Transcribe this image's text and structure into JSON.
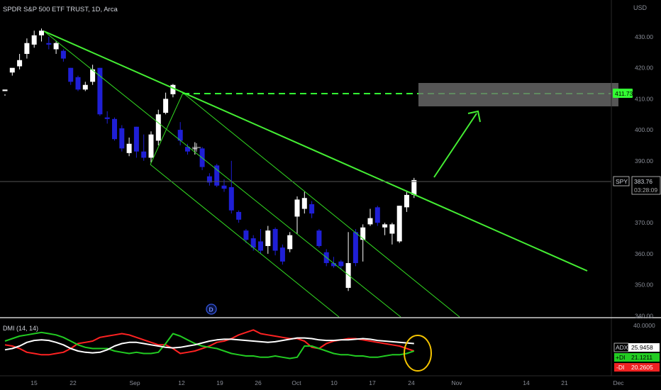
{
  "header": {
    "title": "SPDR S&P 500 ETF TRUST, 1D, Arca"
  },
  "price_axis": {
    "currency": "USD",
    "ticks": [
      "430.00",
      "420.00",
      "410.00",
      "400.00",
      "390.00",
      "380.00",
      "370.00",
      "360.00",
      "350.00",
      "340.00"
    ],
    "tick_values": [
      430,
      420,
      410,
      400,
      390,
      380,
      370,
      360,
      350,
      340
    ]
  },
  "date_axis": {
    "labels": [
      "15",
      "22",
      "Sep",
      "12",
      "19",
      "26",
      "Oct",
      "10",
      "17",
      "24",
      "Nov",
      "14",
      "21",
      "Dec"
    ]
  },
  "price_tags": {
    "target": {
      "value": "411.73",
      "color": "#33ff33"
    },
    "last": {
      "symbol": "SPY",
      "value": "383.76",
      "countdown": "03:28:09"
    }
  },
  "dividend_marker": {
    "label": "D"
  },
  "indicator": {
    "name": "DMI (14, 14)",
    "scale_top": "40.0000",
    "adx": {
      "label": "ADX",
      "value": "25.9458",
      "color": "#ffffff"
    },
    "plus_di": {
      "label": "+DI",
      "value": "21.1211",
      "color": "#22cc22"
    },
    "minus_di": {
      "label": "-DI",
      "value": "20.2605",
      "color": "#ff2222"
    }
  },
  "chart_data": {
    "type": "candlestick",
    "title": "SPDR S&P 500 ETF TRUST, 1D, Arca",
    "ylim": [
      340,
      436
    ],
    "colors": {
      "up": "#ffffff",
      "down": "#1f1fd6",
      "trend": "#44ee33",
      "channel": "#33dd22"
    },
    "candles": [
      [
        412.5,
        413.0,
        411.5,
        411.0
      ],
      [
        418.5,
        420.0,
        419.5,
        417.5
      ],
      [
        420.5,
        422.5,
        424.5,
        419.5
      ],
      [
        424.5,
        428.0,
        429.5,
        423.0
      ],
      [
        427.5,
        430.5,
        432.0,
        426.5
      ],
      [
        430.5,
        432.0,
        432.7,
        428.5
      ],
      [
        428.0,
        427.5,
        430.0,
        426.0
      ],
      [
        426.0,
        428.0,
        428.5,
        424.5
      ],
      [
        425.5,
        423.0,
        426.0,
        422.0
      ],
      [
        420.0,
        415.5,
        420.0,
        414.5
      ],
      [
        417.0,
        413.0,
        417.5,
        412.5
      ],
      [
        413.0,
        414.5,
        415.5,
        412.5
      ],
      [
        415.5,
        419.5,
        421.0,
        414.5
      ],
      [
        420.0,
        405.0,
        420.0,
        404.5
      ],
      [
        404.0,
        403.5,
        406.0,
        402.0
      ],
      [
        403.5,
        397.0,
        404.0,
        396.5
      ],
      [
        400.5,
        394.0,
        401.5,
        393.0
      ],
      [
        392.5,
        395.5,
        397.5,
        391.5
      ],
      [
        401.0,
        393.0,
        401.0,
        391.0
      ],
      [
        393.0,
        391.0,
        398.5,
        390.0
      ],
      [
        391.0,
        398.5,
        399.5,
        389.5
      ],
      [
        396.5,
        405.0,
        406.5,
        395.0
      ],
      [
        405.5,
        410.0,
        412.0,
        405.0
      ],
      [
        411.5,
        414.5,
        414.8,
        410.5
      ],
      [
        400.0,
        396.5,
        402.5,
        395.0
      ],
      [
        394.5,
        393.0,
        395.5,
        392.0
      ],
      [
        394.0,
        394.0,
        396.0,
        392.0
      ],
      [
        394.0,
        388.0,
        394.5,
        387.0
      ],
      [
        385.0,
        383.0,
        386.0,
        382.0
      ],
      [
        388.5,
        382.0,
        389.0,
        381.5
      ],
      [
        382.0,
        381.0,
        384.0,
        380.0
      ],
      [
        381.5,
        374.0,
        390.0,
        373.0
      ],
      [
        373.5,
        371.0,
        374.0,
        370.0
      ],
      [
        367.5,
        364.5,
        368.0,
        363.5
      ],
      [
        365.0,
        362.0,
        366.0,
        361.0
      ],
      [
        364.0,
        361.0,
        368.0,
        360.0
      ],
      [
        362.5,
        367.5,
        369.0,
        360.0
      ],
      [
        368.0,
        361.0,
        368.5,
        359.5
      ],
      [
        362.0,
        357.5,
        363.0,
        356.5
      ],
      [
        361.5,
        366.0,
        367.0,
        360.5
      ],
      [
        372.0,
        377.5,
        378.5,
        366.5
      ],
      [
        374.5,
        378.0,
        380.0,
        373.0
      ],
      [
        376.0,
        373.0,
        377.0,
        371.5
      ],
      [
        367.5,
        362.5,
        368.0,
        362.0
      ],
      [
        360.5,
        357.0,
        361.5,
        356.0
      ],
      [
        357.0,
        356.0,
        359.0,
        355.5
      ],
      [
        357.5,
        356.0,
        358.0,
        355.0
      ],
      [
        349.0,
        357.0,
        367.0,
        348.0
      ],
      [
        367.0,
        357.0,
        368.0,
        356.0
      ],
      [
        364.5,
        368.5,
        369.5,
        357.5
      ],
      [
        369.5,
        371.5,
        374.5,
        369.0
      ],
      [
        375.0,
        370.0,
        375.5,
        369.0
      ],
      [
        368.5,
        369.5,
        370.0,
        366.0
      ],
      [
        366.5,
        369.5,
        370.0,
        363.0
      ],
      [
        364.0,
        375.5,
        375.5,
        363.5
      ],
      [
        375.0,
        379.0,
        380.0,
        373.5
      ],
      [
        379.0,
        383.8,
        384.5,
        378.0
      ]
    ],
    "dmi_ylim": [
      0,
      40
    ],
    "dmi": {
      "adx": [
        21,
        22,
        24,
        27,
        28.5,
        29,
        28.5,
        27,
        25,
        22,
        20,
        19,
        18.5,
        19,
        21,
        24,
        26,
        27,
        27,
        26,
        25,
        24,
        23,
        22.5,
        23,
        24,
        25,
        26.5,
        28,
        29,
        29.5,
        29.5,
        29,
        28.5,
        28,
        27.5,
        27,
        27.5,
        28.5,
        29.5,
        30.5,
        30.5,
        30,
        29,
        28.5,
        28.5,
        29,
        29,
        29.5,
        30,
        29.5,
        28.5,
        28,
        27.5,
        27,
        26.5,
        26
      ],
      "plus_di": [
        28,
        30,
        32,
        33,
        34,
        35,
        34,
        33,
        31,
        28,
        25,
        23,
        22,
        22,
        22,
        20,
        19,
        18,
        19,
        18,
        18,
        19,
        26,
        34,
        32,
        29,
        26,
        24,
        23,
        22,
        20,
        18,
        17,
        16,
        16,
        15,
        15,
        16,
        15,
        14,
        15,
        24,
        24,
        22,
        20,
        18,
        17,
        17,
        16,
        16,
        15,
        15,
        16,
        17,
        17,
        18,
        20
      ],
      "minus_di": [
        25,
        24,
        22,
        19,
        18,
        17,
        17,
        18,
        19,
        22,
        26,
        27,
        28,
        31,
        32,
        33,
        34,
        33,
        31,
        29,
        27,
        25,
        25,
        22,
        18,
        19,
        20,
        22,
        24,
        27,
        28,
        30,
        33,
        35,
        37,
        34,
        33,
        32,
        31,
        30,
        30,
        28,
        23,
        22,
        26,
        28,
        29,
        30,
        30,
        29,
        28,
        27,
        26,
        25,
        24,
        22,
        20
      ]
    }
  }
}
